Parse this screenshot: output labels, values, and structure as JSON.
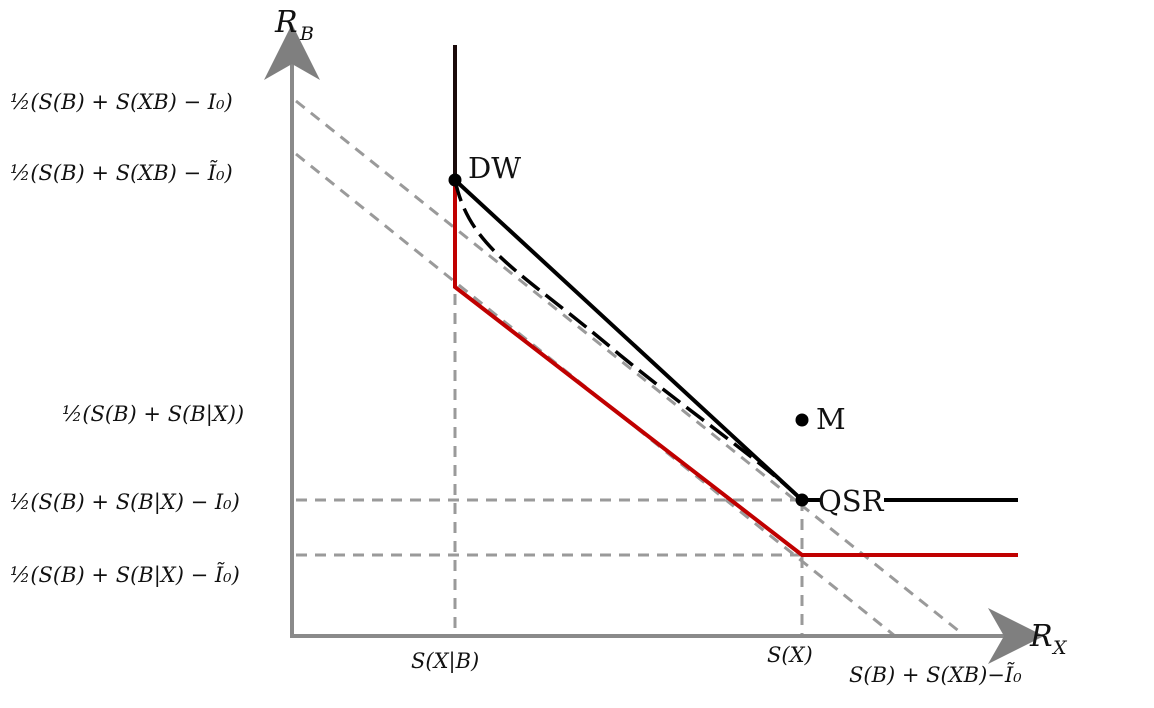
{
  "axes": {
    "y_label_main": "R",
    "y_label_sub": "B",
    "x_label_main": "R",
    "x_label_sub": "X"
  },
  "y_ticks": {
    "t1": "½(S(B) + S(XB) − I₀)",
    "t2": "½(S(B) + S(XB) − Ĩ₀)",
    "t3": "½(S(B) + S(B|X))",
    "t4": "½(S(B) + S(B|X) − I₀)",
    "t5": "½(S(B) + S(B|X) − Ĩ₀)"
  },
  "x_ticks": {
    "t1": "S(X|B)",
    "t2": "S(X)",
    "t3": "S(B) + S(XB)−Ĩ₀"
  },
  "points": {
    "dw": "DW",
    "m": "M",
    "qsr": "QSR"
  },
  "colors": {
    "black_region": "#000000",
    "red_region": "#c00000",
    "dashed_guides": "#9a9a9a",
    "axes": "#8a8a8a"
  }
}
